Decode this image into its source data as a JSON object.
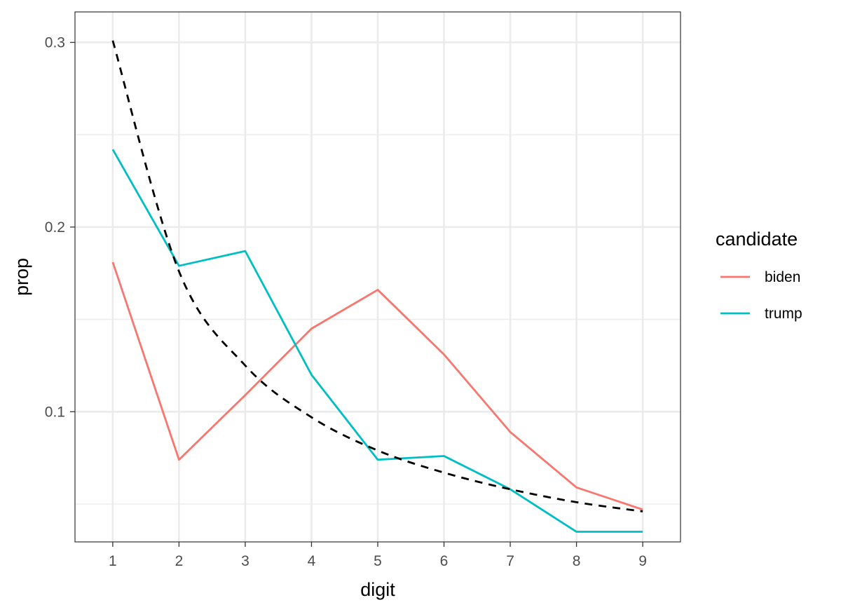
{
  "chart_data": {
    "type": "line",
    "xlabel": "digit",
    "ylabel": "prop",
    "x": [
      1,
      2,
      3,
      4,
      5,
      6,
      7,
      8,
      9
    ],
    "x_ticks": [
      "1",
      "2",
      "3",
      "4",
      "5",
      "6",
      "7",
      "8",
      "9"
    ],
    "xlim": [
      0.43,
      9.57
    ],
    "ylim": [
      0.0295,
      0.3165
    ],
    "y_ticks": [
      0.1,
      0.2,
      0.3
    ],
    "y_tick_labels": [
      "0.1",
      "0.2",
      "0.3"
    ],
    "y_minor_ticks": [
      0.05,
      0.15,
      0.25
    ],
    "grid": true,
    "legend": {
      "title": "candidate",
      "position": "right"
    },
    "series": [
      {
        "name": "biden",
        "color": "#F8766D",
        "values": [
          0.181,
          0.074,
          0.109,
          0.145,
          0.166,
          0.131,
          0.089,
          0.059,
          0.047
        ]
      },
      {
        "name": "trump",
        "color": "#00BFC4",
        "values": [
          0.242,
          0.179,
          0.187,
          0.12,
          0.074,
          0.076,
          0.058,
          0.035,
          0.035
        ]
      }
    ],
    "reference": {
      "style": "dashed",
      "color": "#000000",
      "values": [
        0.301,
        0.176,
        0.125,
        0.097,
        0.079,
        0.067,
        0.058,
        0.051,
        0.046
      ]
    }
  }
}
